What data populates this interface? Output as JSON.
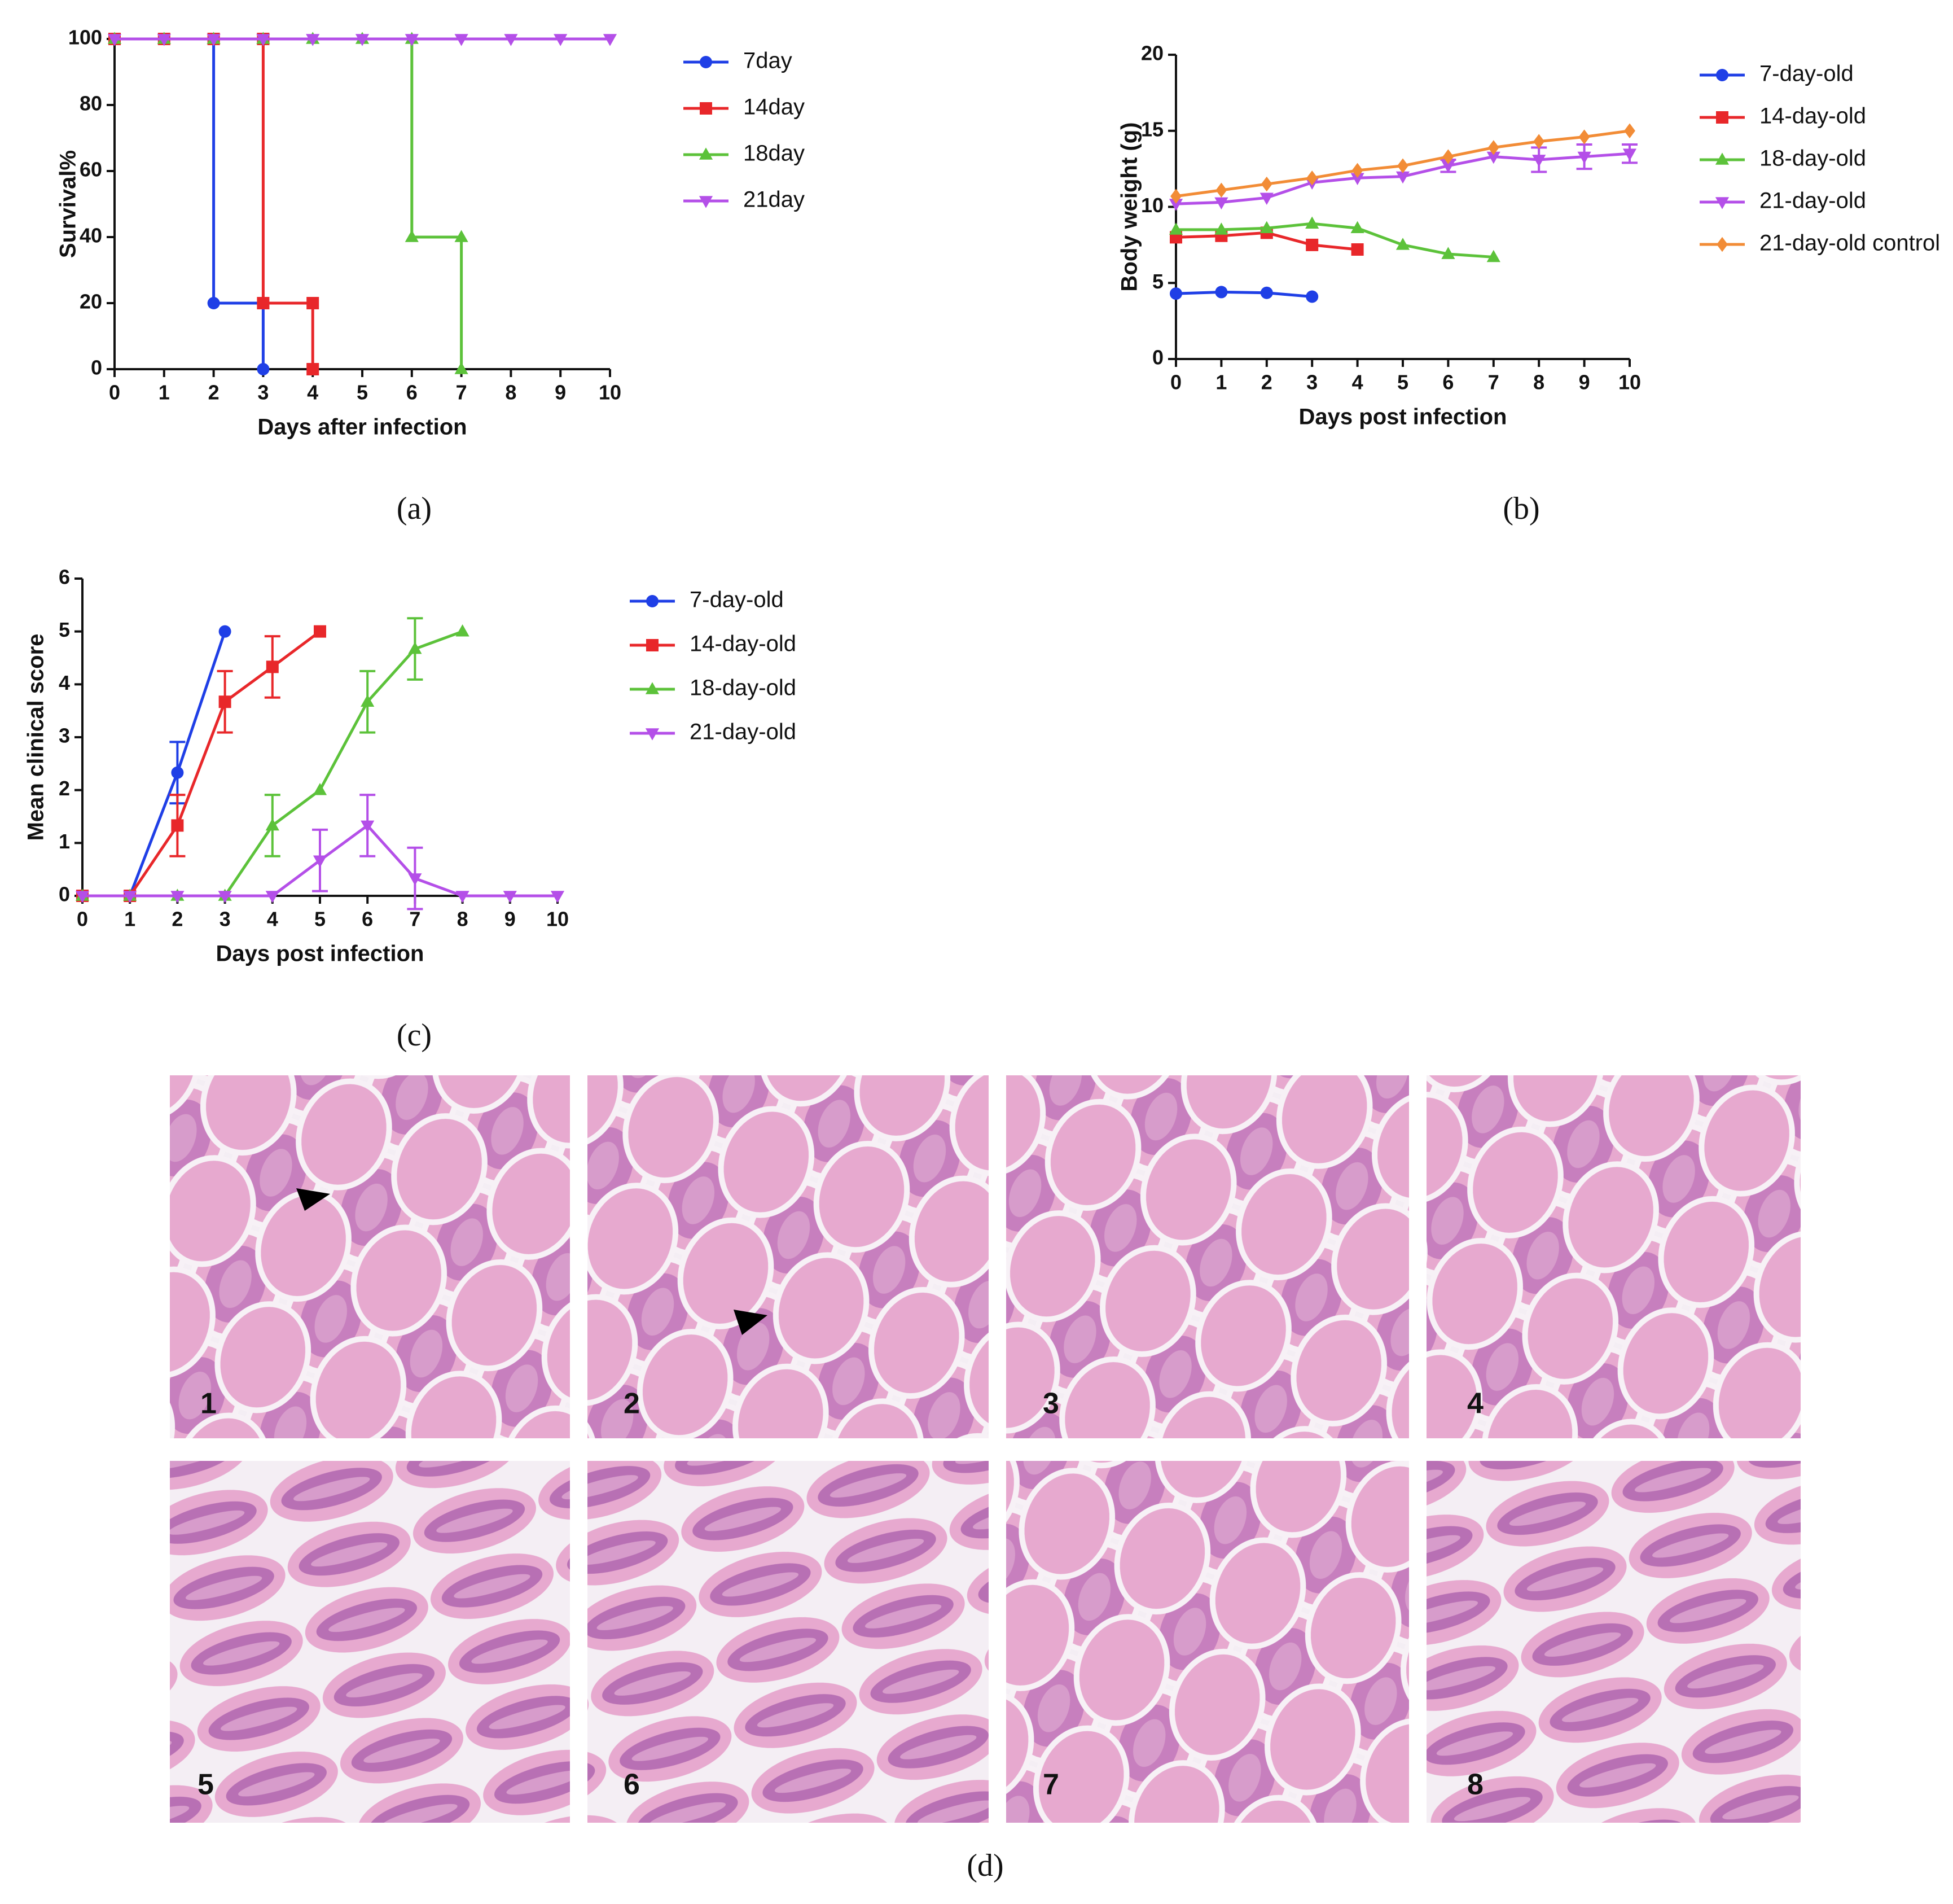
{
  "chart_data": [
    {
      "type": "line",
      "caption": "(a)",
      "xlabel": "Days after infection",
      "ylabel": "Survival%",
      "xlim": [
        0,
        10
      ],
      "xticks": [
        0,
        1,
        2,
        3,
        4,
        5,
        6,
        7,
        8,
        9,
        10
      ],
      "ylim": [
        0,
        100
      ],
      "yticks": [
        0,
        20,
        40,
        60,
        80,
        100
      ],
      "series": [
        {
          "name": "7day",
          "color": "#1f3fe6",
          "marker": "circle",
          "x": [
            0,
            1,
            2,
            2,
            3,
            3
          ],
          "values": [
            100,
            100,
            100,
            20,
            20,
            0
          ]
        },
        {
          "name": "14day",
          "color": "#e8272a",
          "marker": "square",
          "x": [
            0,
            1,
            2,
            3,
            3,
            4,
            4
          ],
          "values": [
            100,
            100,
            100,
            100,
            20,
            20,
            0
          ]
        },
        {
          "name": "18day",
          "color": "#5cc23a",
          "marker": "triangle",
          "x": [
            0,
            1,
            2,
            3,
            4,
            5,
            6,
            6,
            7,
            7
          ],
          "values": [
            100,
            100,
            100,
            100,
            100,
            100,
            100,
            40,
            40,
            0
          ]
        },
        {
          "name": "21day",
          "color": "#b44fe8",
          "marker": "triangle-down",
          "x": [
            0,
            1,
            2,
            3,
            4,
            5,
            6,
            7,
            8,
            9,
            10
          ],
          "values": [
            100,
            100,
            100,
            100,
            100,
            100,
            100,
            100,
            100,
            100,
            100
          ]
        }
      ]
    },
    {
      "type": "line",
      "caption": "(b)",
      "xlabel": "Days post infection",
      "ylabel": "Body weight (g)",
      "x": [
        0,
        1,
        2,
        3,
        4,
        5,
        6,
        7,
        8,
        9,
        10
      ],
      "xlim": [
        0,
        10
      ],
      "xticks": [
        0,
        1,
        2,
        3,
        4,
        5,
        6,
        7,
        8,
        9,
        10
      ],
      "ylim": [
        0,
        20
      ],
      "yticks": [
        0,
        5,
        10,
        15,
        20
      ],
      "series": [
        {
          "name": "7-day-old",
          "color": "#1f3fe6",
          "marker": "circle",
          "values": [
            4.3,
            4.4,
            4.35,
            4.1,
            null,
            null,
            null,
            null,
            null,
            null,
            null
          ]
        },
        {
          "name": "14-day-old",
          "color": "#e8272a",
          "marker": "square",
          "values": [
            8.0,
            8.1,
            8.3,
            7.5,
            7.2,
            null,
            null,
            null,
            null,
            null,
            null
          ]
        },
        {
          "name": "18-day-old",
          "color": "#5cc23a",
          "marker": "triangle",
          "values": [
            8.5,
            8.5,
            8.6,
            8.9,
            8.6,
            7.5,
            6.9,
            6.7,
            null,
            null,
            null
          ]
        },
        {
          "name": "21-day-old",
          "color": "#b44fe8",
          "marker": "triangle-down",
          "values": [
            10.2,
            10.3,
            10.6,
            11.6,
            11.9,
            12.0,
            12.7,
            13.3,
            13.1,
            13.3,
            13.5
          ],
          "errors": [
            null,
            null,
            null,
            null,
            null,
            null,
            0.4,
            null,
            0.8,
            0.8,
            0.6
          ]
        },
        {
          "name": "21-day-old control",
          "color": "#f28c36",
          "marker": "diamond",
          "values": [
            10.7,
            11.1,
            11.5,
            11.9,
            12.4,
            12.7,
            13.3,
            13.9,
            14.3,
            14.6,
            15.0
          ]
        }
      ]
    },
    {
      "type": "line",
      "caption": "(c)",
      "xlabel": "Days post infection",
      "ylabel": "Mean clinical score",
      "x": [
        0,
        1,
        2,
        3,
        4,
        5,
        6,
        7,
        8,
        9,
        10
      ],
      "xlim": [
        0,
        10
      ],
      "xticks": [
        0,
        1,
        2,
        3,
        4,
        5,
        6,
        7,
        8,
        9,
        10
      ],
      "ylim": [
        0,
        6
      ],
      "yticks": [
        0,
        1,
        2,
        3,
        4,
        5,
        6
      ],
      "series": [
        {
          "name": "7-day-old",
          "color": "#1f3fe6",
          "marker": "circle",
          "values": [
            0,
            0,
            2.33,
            5,
            null,
            null,
            null,
            null,
            null,
            null,
            null
          ],
          "errors": [
            null,
            null,
            0.58,
            null,
            null,
            null,
            null,
            null,
            null,
            null,
            null
          ]
        },
        {
          "name": "14-day-old",
          "color": "#e8272a",
          "marker": "square",
          "values": [
            0,
            0,
            1.33,
            3.67,
            4.33,
            5,
            null,
            null,
            null,
            null,
            null
          ],
          "errors": [
            null,
            null,
            0.58,
            0.58,
            0.58,
            null,
            null,
            null,
            null,
            null,
            null
          ]
        },
        {
          "name": "18-day-old",
          "color": "#5cc23a",
          "marker": "triangle",
          "values": [
            0,
            0,
            0,
            0,
            1.33,
            2,
            3.67,
            4.67,
            5,
            null,
            null
          ],
          "errors": [
            null,
            null,
            null,
            null,
            0.58,
            null,
            0.58,
            0.58,
            null,
            null,
            null
          ]
        },
        {
          "name": "21-day-old",
          "color": "#b44fe8",
          "marker": "triangle-down",
          "values": [
            0,
            0,
            0,
            0,
            0,
            0.67,
            1.33,
            0.33,
            0,
            0,
            0
          ],
          "errors": [
            null,
            null,
            null,
            null,
            null,
            0.58,
            0.58,
            0.58,
            null,
            null,
            null
          ]
        }
      ]
    }
  ],
  "figure_d": {
    "caption": "(d)",
    "images": [
      "1",
      "2",
      "3",
      "4",
      "5",
      "6",
      "7",
      "8"
    ]
  }
}
